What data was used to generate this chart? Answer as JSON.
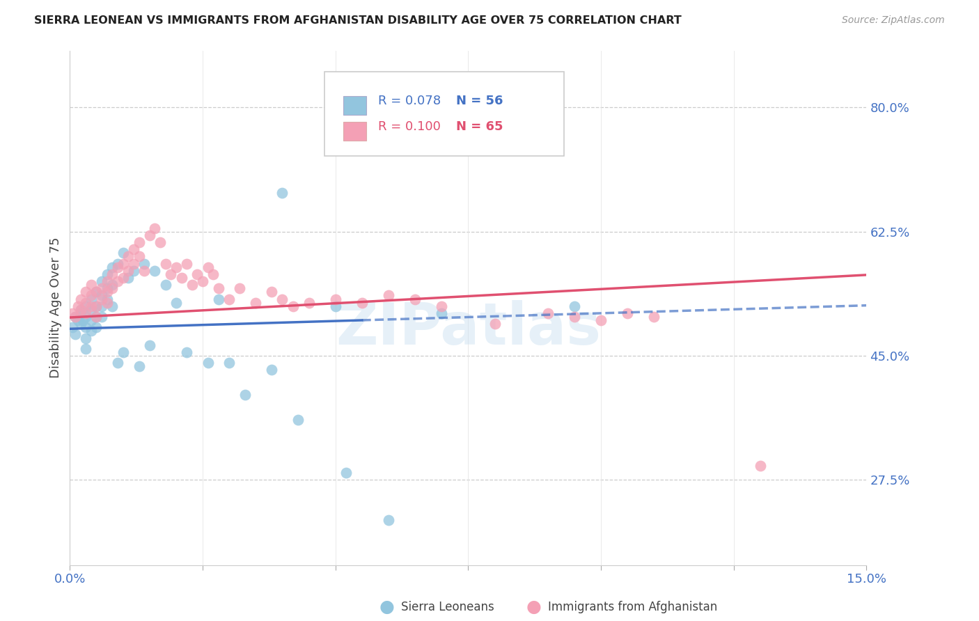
{
  "title": "SIERRA LEONEAN VS IMMIGRANTS FROM AFGHANISTAN DISABILITY AGE OVER 75 CORRELATION CHART",
  "source": "Source: ZipAtlas.com",
  "ylabel": "Disability Age Over 75",
  "ytick_values": [
    0.8,
    0.625,
    0.45,
    0.275
  ],
  "xmin": 0.0,
  "xmax": 0.15,
  "ymin": 0.155,
  "ymax": 0.88,
  "color_blue": "#92c5de",
  "color_pink": "#f4a0b5",
  "color_blue_line": "#4472c4",
  "color_pink_line": "#e05070",
  "color_blue_text": "#4472c4",
  "color_pink_text": "#e05070",
  "watermark_text": "ZIPatlas",
  "legend_r1": "R = 0.078",
  "legend_n1": "N = 56",
  "legend_r2": "R = 0.100",
  "legend_n2": "N = 65",
  "sl_x": [
    0.0005,
    0.001,
    0.001,
    0.0015,
    0.002,
    0.002,
    0.002,
    0.0025,
    0.003,
    0.003,
    0.003,
    0.003,
    0.003,
    0.004,
    0.004,
    0.004,
    0.004,
    0.005,
    0.005,
    0.005,
    0.005,
    0.006,
    0.006,
    0.006,
    0.006,
    0.007,
    0.007,
    0.007,
    0.008,
    0.008,
    0.008,
    0.009,
    0.009,
    0.01,
    0.01,
    0.011,
    0.012,
    0.013,
    0.014,
    0.015,
    0.016,
    0.018,
    0.02,
    0.022,
    0.026,
    0.028,
    0.03,
    0.033,
    0.038,
    0.04,
    0.043,
    0.05,
    0.052,
    0.06,
    0.07,
    0.095
  ],
  "sl_y": [
    0.49,
    0.505,
    0.48,
    0.5,
    0.51,
    0.495,
    0.515,
    0.5,
    0.52,
    0.505,
    0.49,
    0.475,
    0.46,
    0.53,
    0.515,
    0.5,
    0.485,
    0.54,
    0.52,
    0.505,
    0.49,
    0.555,
    0.535,
    0.52,
    0.505,
    0.565,
    0.545,
    0.53,
    0.575,
    0.55,
    0.52,
    0.58,
    0.44,
    0.595,
    0.455,
    0.56,
    0.57,
    0.435,
    0.58,
    0.465,
    0.57,
    0.55,
    0.525,
    0.455,
    0.44,
    0.53,
    0.44,
    0.395,
    0.43,
    0.68,
    0.36,
    0.52,
    0.285,
    0.218,
    0.51,
    0.52
  ],
  "af_x": [
    0.0005,
    0.001,
    0.0015,
    0.002,
    0.002,
    0.003,
    0.003,
    0.003,
    0.004,
    0.004,
    0.004,
    0.005,
    0.005,
    0.005,
    0.006,
    0.006,
    0.007,
    0.007,
    0.007,
    0.008,
    0.008,
    0.009,
    0.009,
    0.01,
    0.01,
    0.011,
    0.011,
    0.012,
    0.012,
    0.013,
    0.013,
    0.014,
    0.015,
    0.016,
    0.017,
    0.018,
    0.019,
    0.02,
    0.021,
    0.022,
    0.023,
    0.024,
    0.025,
    0.026,
    0.027,
    0.028,
    0.03,
    0.032,
    0.035,
    0.038,
    0.04,
    0.042,
    0.045,
    0.05,
    0.055,
    0.06,
    0.065,
    0.07,
    0.08,
    0.09,
    0.095,
    0.1,
    0.105,
    0.11,
    0.13
  ],
  "af_y": [
    0.51,
    0.505,
    0.52,
    0.515,
    0.53,
    0.51,
    0.525,
    0.54,
    0.52,
    0.535,
    0.55,
    0.54,
    0.52,
    0.505,
    0.545,
    0.53,
    0.555,
    0.54,
    0.525,
    0.565,
    0.545,
    0.575,
    0.555,
    0.58,
    0.56,
    0.59,
    0.57,
    0.6,
    0.58,
    0.61,
    0.59,
    0.57,
    0.62,
    0.63,
    0.61,
    0.58,
    0.565,
    0.575,
    0.56,
    0.58,
    0.55,
    0.565,
    0.555,
    0.575,
    0.565,
    0.545,
    0.53,
    0.545,
    0.525,
    0.54,
    0.53,
    0.52,
    0.525,
    0.53,
    0.525,
    0.535,
    0.53,
    0.52,
    0.495,
    0.51,
    0.505,
    0.5,
    0.51,
    0.505,
    0.295
  ]
}
